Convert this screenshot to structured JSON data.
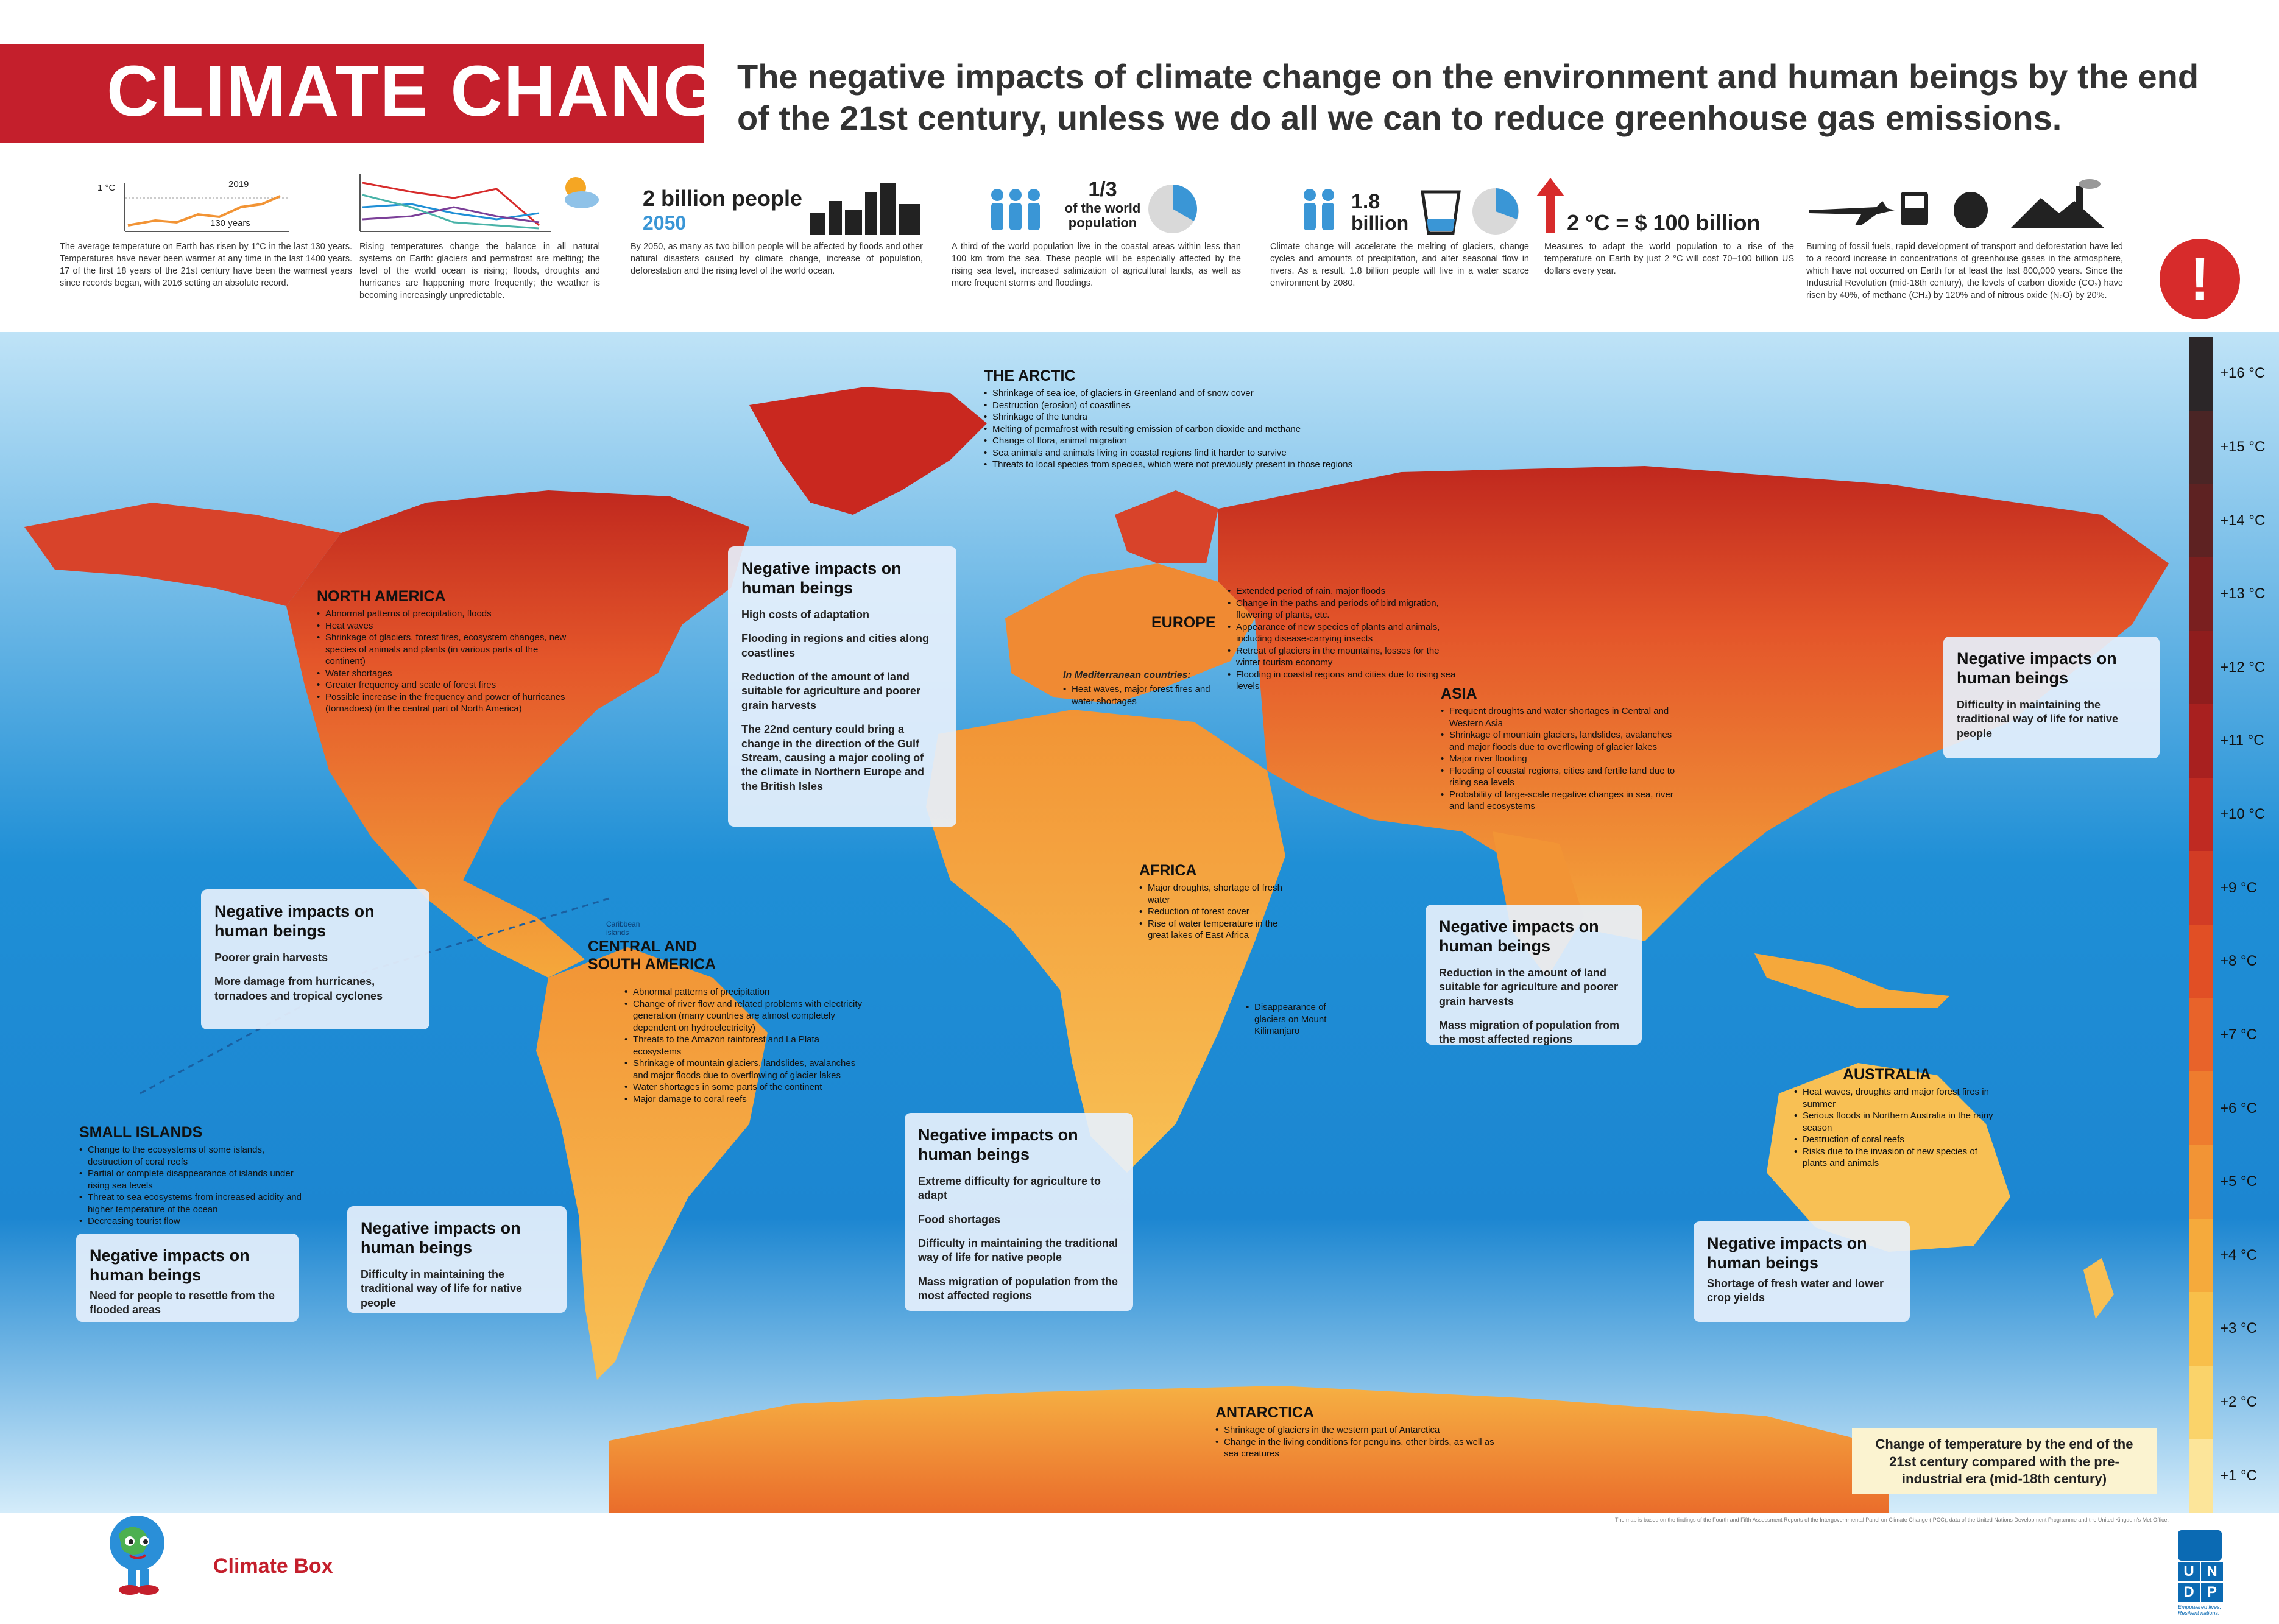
{
  "header": {
    "title": "CLIMATE CHANGE",
    "subtitle": "The negative impacts of climate change on the environment and human beings by the end of the 21st century, unless we do all we can to reduce greenhouse gas emissions."
  },
  "stats": [
    {
      "label_a": "1 °C",
      "label_b": "2019",
      "label_c": "130 years",
      "text": "The average temperature on Earth has risen by 1°C in the last 130 years. Temperatures have never been warmer at any time in the last 1400 years. 17 of the first 18 years of the 21st century have been the warmest years since records began, with 2016 setting an absolute record."
    },
    {
      "text": "Rising temperatures change the balance in all natural systems on Earth: glaciers and permafrost are melting; the level of the world ocean is rising; floods, droughts and hurricanes are happening more frequently; the weather is becoming increasingly unpredictable."
    },
    {
      "big": "2 billion people",
      "sub": "2050",
      "text": "By 2050, as many as two billion people will be affected by floods and other natural disasters caused by climate change, increase of population, deforestation and the rising level of the world ocean."
    },
    {
      "big": "1/3",
      "sub": "of the world population",
      "text": "A third of the world population live in the coastal areas within less than 100 km from the sea. These people will be especially affected by the rising sea level, increased salinization of agricultural lands, as well as more frequent storms and floodings."
    },
    {
      "big": "1.8",
      "sub": "billion",
      "text": "Climate change will accelerate the melting of glaciers, change cycles and amounts of precipitation, and alter seasonal flow in rivers. As a result, 1.8 billion people will live in a water scarce environment by 2080."
    },
    {
      "big": "2 °C = $ 100 billion",
      "text": "Measures to adapt the world population to a rise of the temperature on Earth by just 2 °C will cost 70–100 billion US dollars every year."
    },
    {
      "text": "Burning of fossil fuels, rapid development of transport and deforestation have led to a record increase in concentrations of greenhouse gases in the atmosphere, which have not occurred on Earth for at least the last 800,000 years. Since the Industrial Revolution (mid-18th century), the levels of carbon dioxide (CO₂) have risen by 40%, of methane (CH₄) by 120% and of nitrous oxide (N₂O) by 20%."
    }
  ],
  "alert_symbol": "!",
  "regions": {
    "arctic": {
      "title": "THE ARCTIC",
      "items": [
        "Shrinkage of sea ice, of glaciers in Greenland and of snow cover",
        "Destruction (erosion) of coastlines",
        "Shrinkage of the tundra",
        "Melting of permafrost with resulting emission of carbon dioxide and methane",
        "Change of flora, animal migration",
        "Sea animals and animals living in coastal regions find it harder to survive",
        "Threats to local species from species, which were not previously present in those regions"
      ]
    },
    "north_america": {
      "title": "NORTH AMERICA",
      "items": [
        "Abnormal patterns of precipitation, floods",
        "Heat waves",
        "Shrinkage of glaciers, forest fires, ecosystem changes, new species of animals and plants (in various parts of the continent)",
        "Water shortages",
        "Greater frequency and scale of forest fires",
        "Possible increase in the frequency and power of hurricanes (tornadoes) (in the central part of North America)"
      ]
    },
    "europe": {
      "title": "EUROPE",
      "med_label": "In Mediterranean countries:",
      "med_items": [
        "Heat waves, major forest fires and water shortages"
      ],
      "items": [
        "Extended period of rain, major floods",
        "Change in the paths and periods of bird migration, flowering of plants, etc.",
        "Appearance of new species of plants and animals, including disease-carrying insects",
        "Retreat of glaciers in the mountains, losses for the winter tourism economy",
        "Flooding in coastal regions and cities due to rising sea levels"
      ]
    },
    "asia": {
      "title": "ASIA",
      "items": [
        "Frequent droughts and water shortages in Central and Western Asia",
        "Shrinkage of mountain glaciers, landslides, avalanches and major floods due to overflowing of glacier lakes",
        "Major river flooding",
        "Flooding of coastal regions, cities and fertile land due to rising sea levels",
        "Probability of large-scale negative changes in sea, river and land ecosystems"
      ]
    },
    "africa": {
      "title": "AFRICA",
      "items": [
        "Major droughts, shortage of fresh water",
        "Reduction of forest cover",
        "Rise of water temperature in the great lakes of East Africa"
      ],
      "kilimanjaro": "Disappearance of glaciers on Mount Kilimanjaro"
    },
    "south_america": {
      "title": "CENTRAL AND SOUTH AMERICA",
      "caribbean": "Caribbean islands",
      "items": [
        "Abnormal patterns of precipitation",
        "Change of river flow and related problems with electricity generation (many countries are almost completely dependent on hydroelectricity)",
        "Threats to the Amazon rainforest and La Plata ecosystems",
        "Shrinkage of mountain glaciers, landslides, avalanches and major floods due to overflowing of glacier lakes",
        "Water shortages in some parts of the continent",
        "Major damage to coral reefs"
      ]
    },
    "australia": {
      "title": "AUSTRALIA",
      "items": [
        "Heat waves, droughts and major forest fires in summer",
        "Serious floods in Northern Australia in the rainy season",
        "Destruction of coral reefs",
        "Risks due to the invasion of new species of plants and animals"
      ]
    },
    "small_islands": {
      "title": "SMALL ISLANDS",
      "items": [
        "Change to the ecosystems of some islands, destruction of coral reefs",
        "Partial or complete disappearance of islands under rising sea levels",
        "Threat to sea ecosystems from increased acidity and higher temperature of the ocean",
        "Decreasing tourist flow"
      ]
    },
    "antarctica": {
      "title": "ANTARCTICA",
      "items": [
        "Shrinkage of glaciers in the western part of Antarctica",
        "Change in the living conditions for penguins, other birds, as well as sea creatures"
      ]
    }
  },
  "impacts": {
    "title": "Negative impacts on human beings",
    "europe": [
      "High costs of adaptation",
      "Flooding in regions and cities along coastlines",
      "Reduction of the amount of land suitable for agriculture and poorer grain harvests",
      "The 22nd century could bring a change in the direction of the Gulf Stream, causing a major cooling of the climate in Northern Europe and the British Isles"
    ],
    "north_america": [
      "Poorer grain harvests",
      "More damage from hurricanes, tornadoes and tropical cyclones"
    ],
    "arctic_east": [
      "Difficulty in maintaining the traditional way of life for native people"
    ],
    "asia": [
      "Reduction in the amount of land suitable for agriculture and poorer grain harvests",
      "Mass migration of population from the most affected regions"
    ],
    "africa": [
      "Extreme difficulty for agriculture to adapt",
      "Food shortages",
      "Difficulty in maintaining the traditional way of life for native people",
      "Mass migration of population from the most affected regions"
    ],
    "south_america": [
      "Difficulty in maintaining the traditional way of life for native people"
    ],
    "small_islands": [
      "Need for people to resettle from the flooded areas"
    ],
    "australia": [
      "Shortage of fresh water and lower crop yields"
    ]
  },
  "legend": {
    "caption": "Change of temperature by the end of the 21st century compared with the pre-industrial era (mid-18th century)",
    "labels": [
      "+16 °C",
      "+15 °C",
      "+14 °C",
      "+13 °C",
      "+12 °C",
      "+11 °C",
      "+10 °C",
      "+9 °C",
      "+8 °C",
      "+7 °C",
      "+6 °C",
      "+5 °C",
      "+4 °C",
      "+3 °C",
      "+2 °C",
      "+1 °C"
    ],
    "colors": [
      "#2b2628",
      "#4a2525",
      "#5e2222",
      "#7a1f1f",
      "#8f1d1d",
      "#a8201f",
      "#bf2a22",
      "#d23c25",
      "#e14f25",
      "#e8632a",
      "#ee7c2e",
      "#f29435",
      "#f5aa3c",
      "#f8bf4a",
      "#fad36a",
      "#fce59a"
    ]
  },
  "footer": {
    "brand": "Climate Box",
    "note": "The map is based on the findings of the Fourth and Fifth Assessment Reports of the Intergovernmental Panel on Climate Change (IPCC), data of the United Nations Development Programme and the United Kingdom's Met Office.",
    "undp_letters": [
      "U",
      "N",
      "D",
      "P"
    ],
    "undp_tagline": "Empowered lives. Resilient nations."
  }
}
